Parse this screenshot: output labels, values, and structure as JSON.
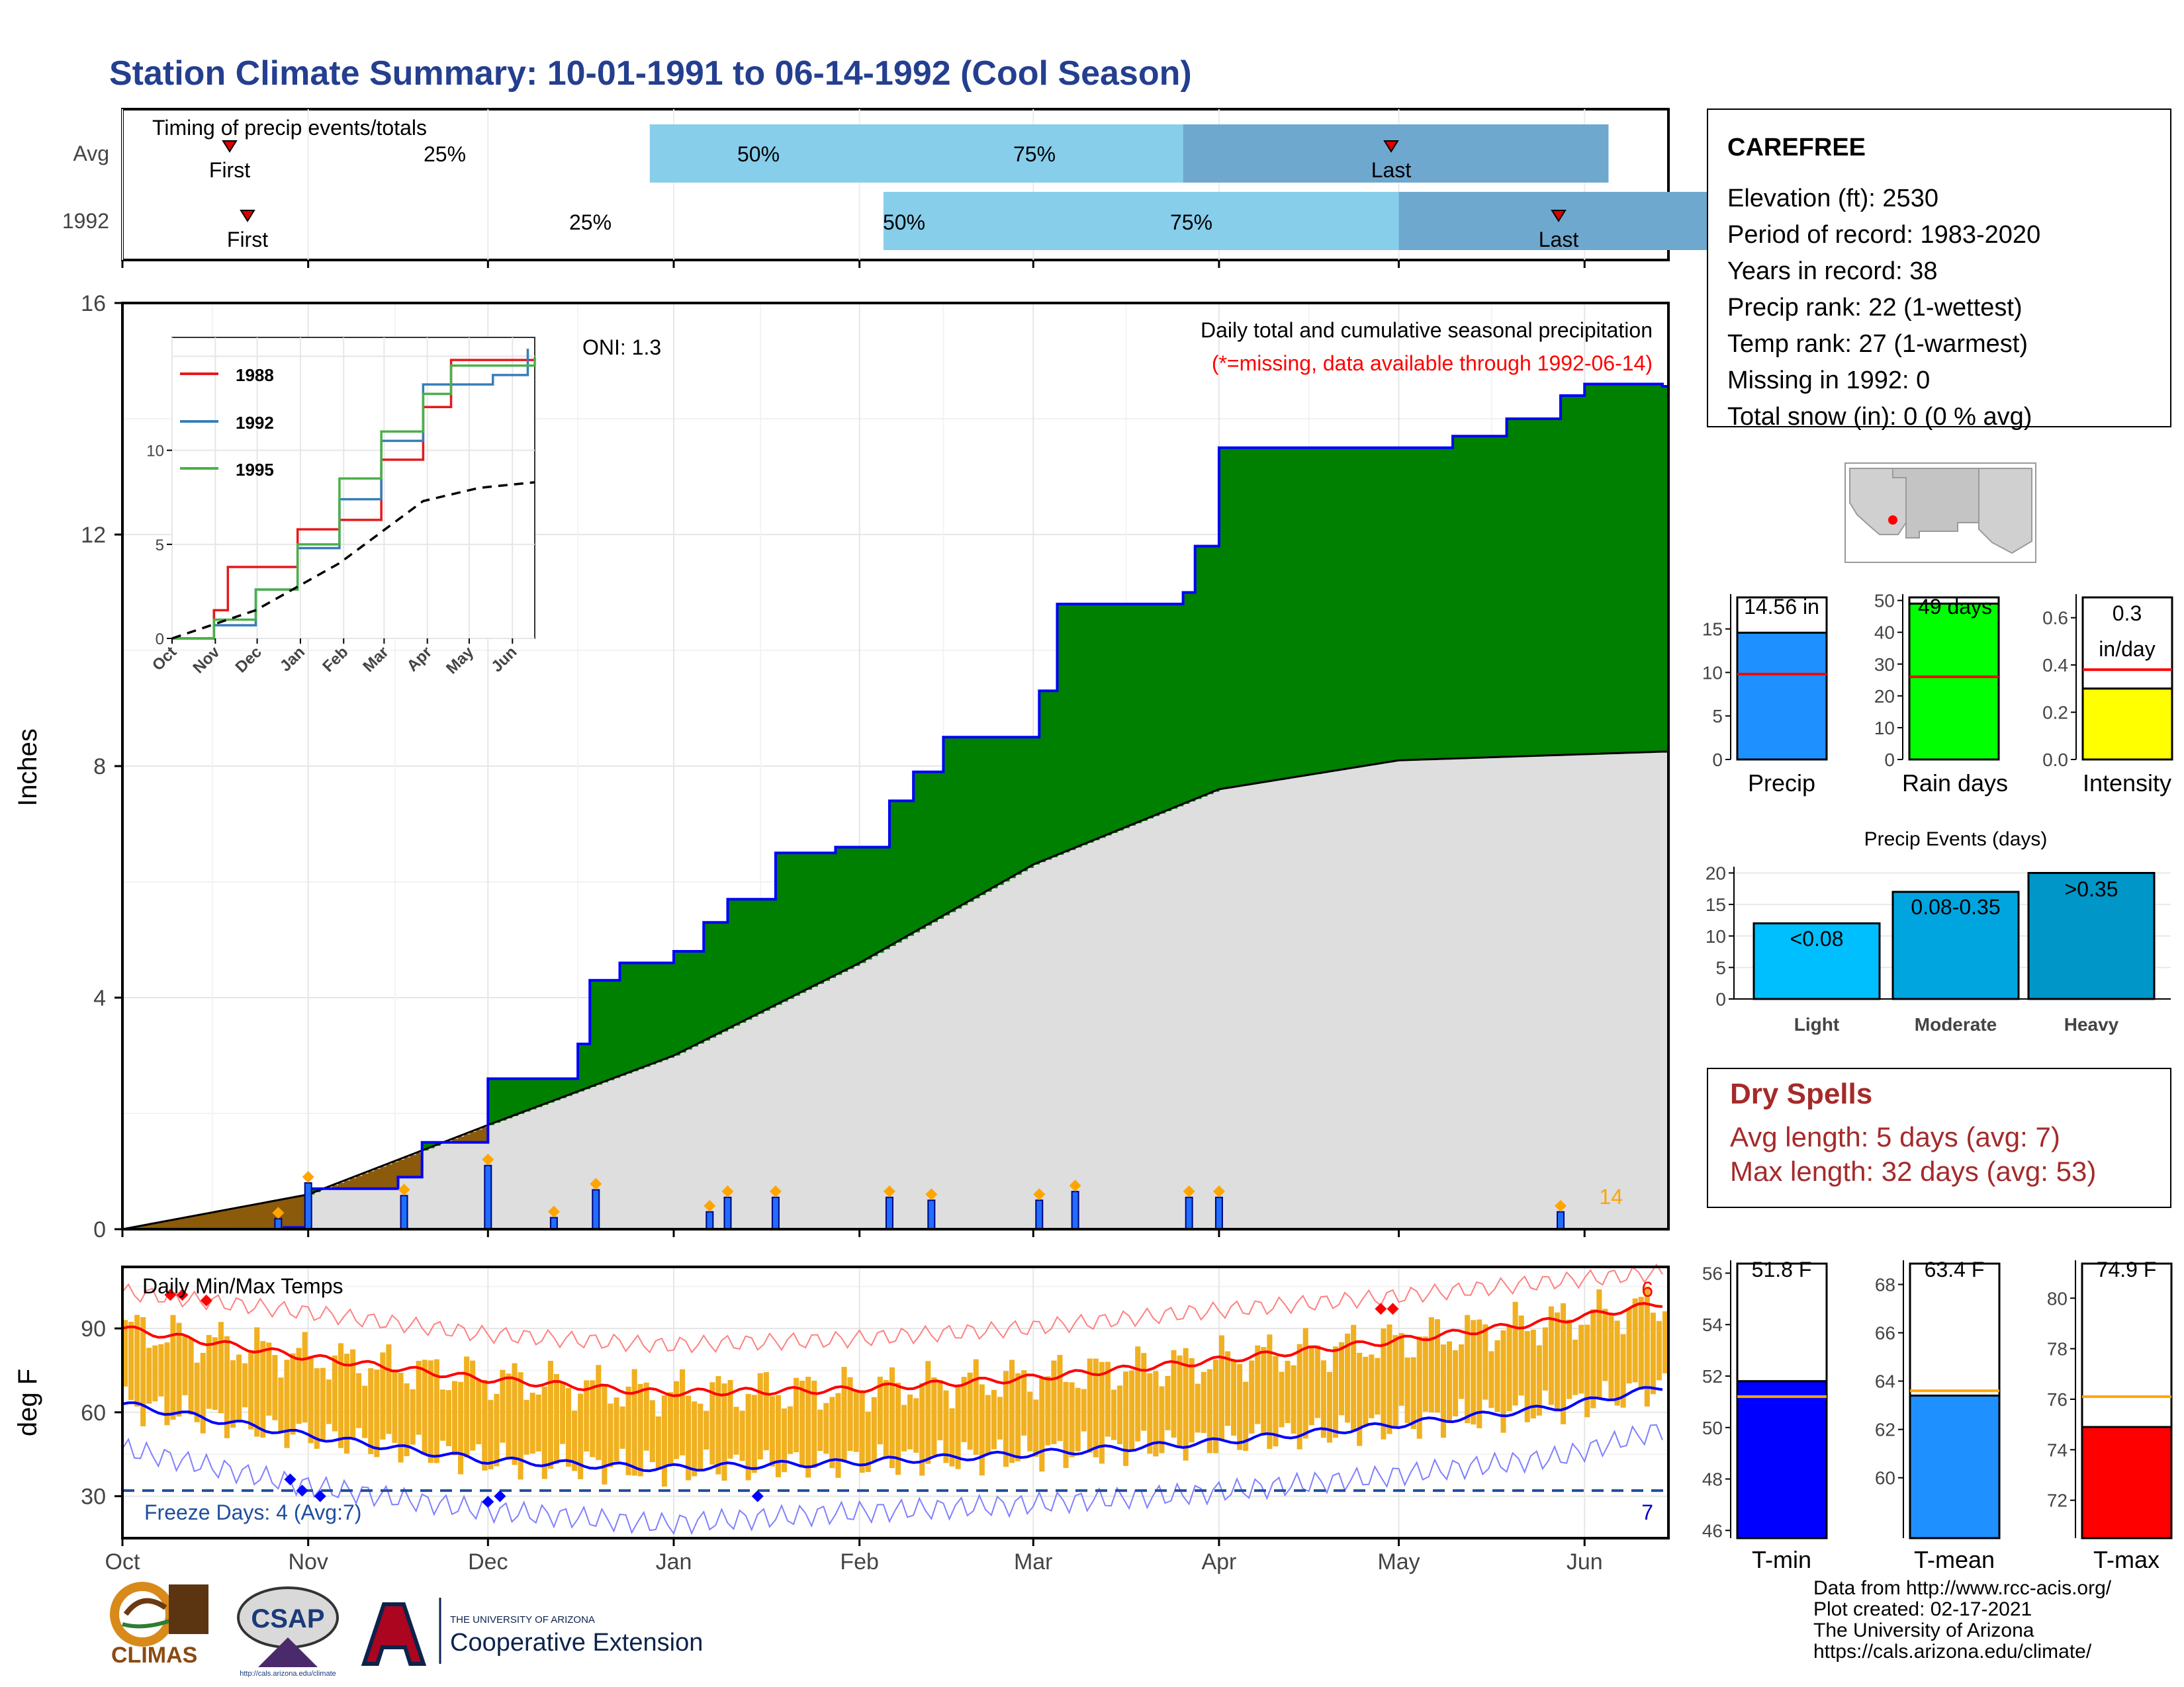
{
  "title": "Station Climate Summary: 10-01-1991 to 06-14-1992 (Cool Season)",
  "timing_panel": {
    "label": "Timing of precip events/totals",
    "rows": [
      {
        "label": "Avg",
        "first": "First",
        "last": "Last",
        "p25": "25%",
        "p50": "50%",
        "p75": "75%"
      },
      {
        "label": "1992",
        "first": "First",
        "last": "Last",
        "p25": "25%",
        "p50": "50%",
        "p75": "75%"
      }
    ]
  },
  "station": {
    "name": "CAREFREE",
    "lines": [
      "Elevation (ft): 2530",
      "Period of record: 1983-2020",
      "Years in record: 38",
      "Precip rank: 22 (1-wettest)",
      "Temp rank: 27 (1-warmest)",
      "Missing in 1992: 0",
      "Total snow (in): 0 (0 % avg)"
    ]
  },
  "precip_panel": {
    "ylabel": "Inches",
    "oni": "ONI: 1.3",
    "subtitle": "Daily total and cumulative seasonal precipitation",
    "missing_note": "(*=missing, data available through 1992-06-14)",
    "corner_count": "14"
  },
  "inset": {
    "legend": [
      "1988",
      "1992",
      "1995"
    ]
  },
  "mini_bars": {
    "precip": {
      "label": "Precip",
      "value_label": "14.56 in"
    },
    "rain_days": {
      "label": "Rain days",
      "value_label": "49 days"
    },
    "intensity": {
      "label": "Intensity",
      "value_label_1": "0.3",
      "value_label_2": "in/day"
    }
  },
  "events_panel": {
    "title": "Precip Events (days)",
    "bars": [
      {
        "label": "Light",
        "range": "<0.08"
      },
      {
        "label": "Moderate",
        "range": "0.08-0.35"
      },
      {
        "label": "Heavy",
        "range": ">0.35"
      }
    ]
  },
  "dry_spells": {
    "title": "Dry Spells",
    "avg": "Avg length: 5 days (avg: 7)",
    "max": "Max length: 32 days (avg: 53)"
  },
  "temp_panel": {
    "ylabel": "deg F",
    "label": "Daily Min/Max Temps",
    "freeze": "Freeze Days: 4 (Avg:7)",
    "hot_count": "6",
    "cold_count": "7"
  },
  "temp_bars": {
    "tmin": {
      "label": "T-min",
      "value_label": "51.8 F"
    },
    "tmean": {
      "label": "T-mean",
      "value_label": "63.4 F"
    },
    "tmax": {
      "label": "T-max",
      "value_label": "74.9 F"
    }
  },
  "credits": [
    "Data from http://www.rcc-acis.org/",
    "Plot created: 02-17-2021",
    "The University of Arizona",
    "https://cals.arizona.edu/climate/"
  ],
  "logos": {
    "climas": "CLIMAS",
    "csap": "CSAP",
    "csap_url": "http://cals.arizona.edu/climate",
    "ua_line1": "THE UNIVERSITY OF ARIZONA",
    "ua_line2": "Cooperative Extension"
  },
  "colors": {
    "title": "#243f8f",
    "cumulative_line": "#0000ff",
    "surplus_fill": "#008000",
    "deficit_fill": "#8b5a0b",
    "normal_fill": "#dedede",
    "temp_bars": "#f0b020",
    "mean_max": "#ff0000",
    "mean_min": "#0000ff",
    "dry_spells": "#a52a2a",
    "missing_note": "#ff0000"
  },
  "chart_data": [
    {
      "id": "timing",
      "type": "bar",
      "x_axis": "days since 1991-10-01",
      "rows": [
        {
          "label": "Avg",
          "first_day": 30,
          "p25_day": 88,
          "p50_day": 177,
          "p75_day": 248,
          "last_day": 205
        },
        {
          "label": "1992",
          "first_day": 33,
          "p25_day": 127,
          "p50_day": 213,
          "p75_day": 290,
          "last_day": 251
        }
      ]
    },
    {
      "id": "precip_cumulative",
      "type": "area",
      "xlabel": "",
      "ylabel": "Inches",
      "ylim": [
        0,
        16
      ],
      "x_ticks": [
        "Oct",
        "Nov",
        "Dec",
        "Jan",
        "Feb",
        "Mar",
        "Apr",
        "May",
        "Jun"
      ],
      "y_ticks": [
        0,
        4,
        8,
        12,
        16
      ],
      "cumulative_1992": [
        [
          "1991-10-01",
          0
        ],
        [
          "1991-10-28",
          0.03
        ],
        [
          "1991-11-01",
          0.7
        ],
        [
          "1991-11-16",
          0.9
        ],
        [
          "1991-11-20",
          1.5
        ],
        [
          "1991-12-01",
          2.6
        ],
        [
          "1991-12-16",
          3.2
        ],
        [
          "1991-12-18",
          4.3
        ],
        [
          "1991-12-23",
          4.6
        ],
        [
          "1992-01-01",
          4.8
        ],
        [
          "1992-01-06",
          5.3
        ],
        [
          "1992-01-10",
          5.7
        ],
        [
          "1992-01-18",
          6.5
        ],
        [
          "1992-01-28",
          6.6
        ],
        [
          "1992-02-06",
          7.4
        ],
        [
          "1992-02-10",
          7.9
        ],
        [
          "1992-02-15",
          8.5
        ],
        [
          "1992-02-29",
          8.5
        ],
        [
          "1992-03-02",
          9.3
        ],
        [
          "1992-03-05",
          10.8
        ],
        [
          "1992-03-26",
          11.0
        ],
        [
          "1992-03-28",
          11.8
        ],
        [
          "1992-04-01",
          13.5
        ],
        [
          "1992-05-10",
          13.7
        ],
        [
          "1992-05-19",
          14.0
        ],
        [
          "1992-05-28",
          14.4
        ],
        [
          "1992-06-01",
          14.6
        ],
        [
          "1992-06-14",
          14.56
        ]
      ],
      "cumulative_normal": [
        [
          "1991-10-01",
          0
        ],
        [
          "1991-11-01",
          0.6
        ],
        [
          "1991-12-01",
          1.8
        ],
        [
          "1992-01-01",
          3.0
        ],
        [
          "1992-02-01",
          4.6
        ],
        [
          "1992-03-01",
          6.3
        ],
        [
          "1992-04-01",
          7.6
        ],
        [
          "1992-05-01",
          8.1
        ],
        [
          "1992-06-14",
          8.25
        ]
      ],
      "daily_precip": [
        [
          "1991-10-27",
          0.18
        ],
        [
          "1991-11-01",
          0.8
        ],
        [
          "1991-11-17",
          0.58
        ],
        [
          "1991-12-01",
          1.1
        ],
        [
          "1991-12-12",
          0.2
        ],
        [
          "1991-12-19",
          0.68
        ],
        [
          "1992-01-07",
          0.3
        ],
        [
          "1992-01-10",
          0.55
        ],
        [
          "1992-01-18",
          0.55
        ],
        [
          "1992-02-06",
          0.55
        ],
        [
          "1992-02-13",
          0.5
        ],
        [
          "1992-03-02",
          0.5
        ],
        [
          "1992-03-08",
          0.65
        ],
        [
          "1992-03-27",
          0.55
        ],
        [
          "1992-04-01",
          0.55
        ],
        [
          "1992-05-28",
          0.3
        ]
      ]
    },
    {
      "id": "inset_cumulative",
      "type": "line",
      "y_ticks": [
        0,
        5,
        10
      ],
      "x_ticks": [
        "Oct",
        "Nov",
        "Dec",
        "Jan",
        "Feb",
        "Mar",
        "Apr",
        "May",
        "Jun"
      ],
      "series": [
        {
          "name": "1988",
          "color": "#e41a1c",
          "values": [
            [
              0,
              0
            ],
            [
              30,
              1.5
            ],
            [
              40,
              3.8
            ],
            [
              60,
              3.8
            ],
            [
              90,
              5.8
            ],
            [
              120,
              6.3
            ],
            [
              150,
              9.5
            ],
            [
              180,
              12.3
            ],
            [
              200,
              14.8
            ],
            [
              260,
              14.9
            ]
          ]
        },
        {
          "name": "1992",
          "color": "#377eb8",
          "values": [
            [
              0,
              0
            ],
            [
              30,
              0.7
            ],
            [
              60,
              2.6
            ],
            [
              90,
              4.8
            ],
            [
              120,
              7.4
            ],
            [
              150,
              10.5
            ],
            [
              180,
              13.5
            ],
            [
              230,
              14.0
            ],
            [
              255,
              15.4
            ]
          ]
        },
        {
          "name": "1995",
          "color": "#4daf4a",
          "values": [
            [
              0,
              0
            ],
            [
              30,
              1.0
            ],
            [
              60,
              2.6
            ],
            [
              90,
              5.0
            ],
            [
              120,
              8.5
            ],
            [
              150,
              11.0
            ],
            [
              180,
              13.0
            ],
            [
              200,
              14.5
            ],
            [
              260,
              14.9
            ]
          ]
        },
        {
          "name": "Avg",
          "color": "#000000",
          "values": [
            [
              0,
              0
            ],
            [
              60,
              1.5
            ],
            [
              120,
              4.0
            ],
            [
              180,
              7.3
            ],
            [
              220,
              8.0
            ],
            [
              260,
              8.3
            ]
          ]
        }
      ]
    },
    {
      "id": "mini_precip",
      "type": "bar",
      "categories": [
        "Precip"
      ],
      "values": [
        14.56
      ],
      "avg": 9.8,
      "ylim": [
        0,
        19
      ],
      "y_ticks": [
        0,
        5,
        10,
        15
      ]
    },
    {
      "id": "mini_rain_days",
      "type": "bar",
      "categories": [
        "Rain days"
      ],
      "values": [
        49
      ],
      "avg": 26,
      "ylim": [
        0,
        52
      ],
      "y_ticks": [
        0,
        10,
        20,
        30,
        40,
        50
      ]
    },
    {
      "id": "mini_intensity",
      "type": "bar",
      "categories": [
        "Intensity"
      ],
      "values": [
        0.3
      ],
      "avg": 0.38,
      "ylim": [
        0,
        0.7
      ],
      "y_ticks": [
        0.0,
        0.2,
        0.4,
        0.6
      ]
    },
    {
      "id": "precip_events",
      "type": "bar",
      "title": "Precip Events (days)",
      "categories": [
        "Light",
        "Moderate",
        "Heavy"
      ],
      "values": [
        12,
        17,
        20
      ],
      "ylim": [
        0,
        21
      ],
      "y_ticks": [
        0,
        5,
        10,
        15,
        20
      ]
    },
    {
      "id": "daily_temps",
      "type": "line",
      "ylabel": "deg F",
      "ylim": [
        15,
        112
      ],
      "y_ticks": [
        30,
        60,
        90
      ],
      "x_ticks": [
        "Oct",
        "Nov",
        "Dec",
        "Jan",
        "Feb",
        "Mar",
        "Apr",
        "May",
        "Jun"
      ],
      "mean_max": [
        [
          0,
          90
        ],
        [
          30,
          80
        ],
        [
          60,
          72
        ],
        [
          90,
          67
        ],
        [
          120,
          68
        ],
        [
          150,
          72
        ],
        [
          180,
          78
        ],
        [
          210,
          85
        ],
        [
          240,
          93
        ],
        [
          257,
          99
        ]
      ],
      "mean_min": [
        [
          0,
          63
        ],
        [
          30,
          52
        ],
        [
          60,
          43
        ],
        [
          90,
          40
        ],
        [
          120,
          42
        ],
        [
          150,
          45
        ],
        [
          180,
          49
        ],
        [
          210,
          55
        ],
        [
          240,
          62
        ],
        [
          257,
          69
        ]
      ],
      "record_max": [
        [
          0,
          103
        ],
        [
          30,
          96
        ],
        [
          60,
          88
        ],
        [
          90,
          84
        ],
        [
          120,
          86
        ],
        [
          150,
          90
        ],
        [
          180,
          96
        ],
        [
          210,
          101
        ],
        [
          240,
          107
        ],
        [
          257,
          110
        ]
      ],
      "record_min": [
        [
          0,
          47
        ],
        [
          30,
          34
        ],
        [
          60,
          25
        ],
        [
          90,
          20
        ],
        [
          120,
          24
        ],
        [
          150,
          27
        ],
        [
          180,
          31
        ],
        [
          210,
          37
        ],
        [
          240,
          44
        ],
        [
          257,
          54
        ]
      ],
      "freeze_line": 32
    },
    {
      "id": "temp_tmin",
      "type": "bar",
      "categories": [
        "T-min"
      ],
      "values": [
        51.8
      ],
      "avg": 51.2,
      "ylim": [
        45.7,
        56.5
      ],
      "y_ticks": [
        46,
        48,
        50,
        52,
        54,
        56
      ]
    },
    {
      "id": "temp_tmean",
      "type": "bar",
      "categories": [
        "T-mean"
      ],
      "values": [
        63.4
      ],
      "avg": 63.6,
      "ylim": [
        57.5,
        69
      ],
      "y_ticks": [
        60,
        62,
        64,
        66,
        68
      ]
    },
    {
      "id": "temp_tmax",
      "type": "bar",
      "categories": [
        "T-max"
      ],
      "values": [
        74.9
      ],
      "avg": 76.1,
      "ylim": [
        70.5,
        81.5
      ],
      "y_ticks": [
        72,
        74,
        76,
        78,
        80
      ]
    }
  ]
}
